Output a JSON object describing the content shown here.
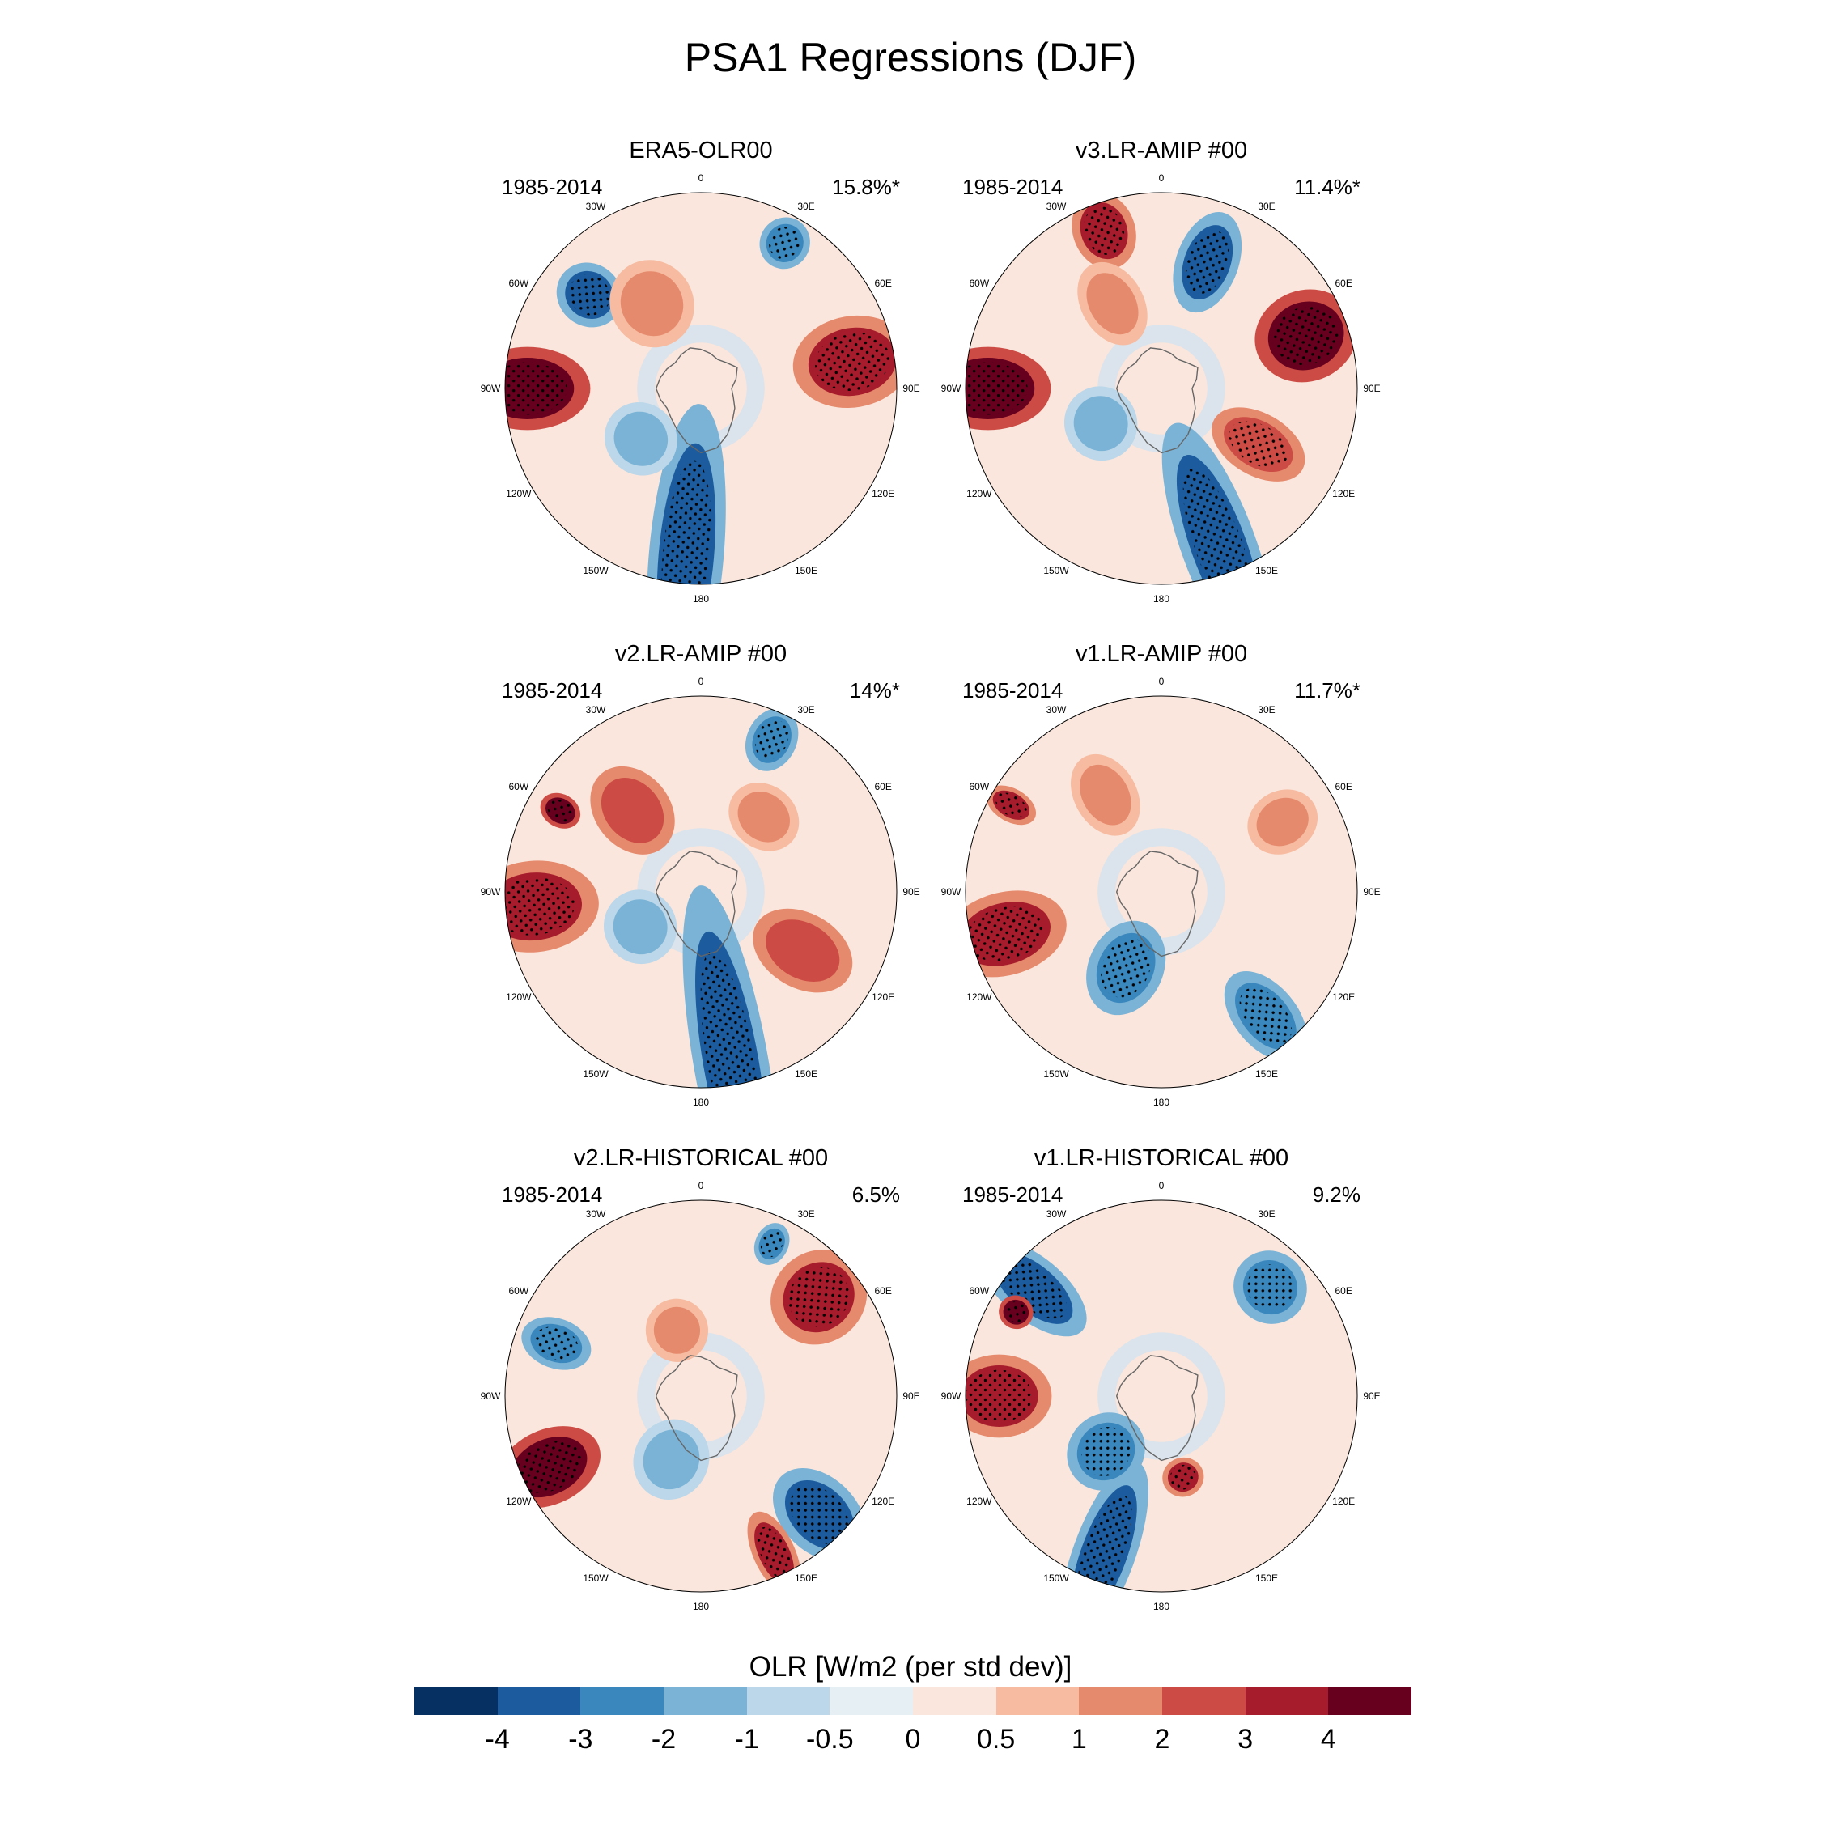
{
  "figure": {
    "title": "PSA1 Regressions (DJF)",
    "panels": [
      {
        "title": "ERA5-OLR00",
        "period": "1985-2014",
        "variance": "15.8%*",
        "anomalies": [
          {
            "lon": 270,
            "colat": 62,
            "lon_width": 28,
            "colat_width": 20,
            "value": 4.2
          },
          {
            "lon": 80,
            "colat": 55,
            "lon_width": 30,
            "colat_width": 22,
            "value": 3.6
          },
          {
            "lon": 185,
            "colat": 60,
            "lon_width": 70,
            "colat_width": 18,
            "value": -4.0
          },
          {
            "lon": 310,
            "colat": 52,
            "lon_width": 18,
            "colat_width": 15,
            "value": -3.3
          },
          {
            "lon": 230,
            "colat": 28,
            "lon_width": 35,
            "colat_width": 18,
            "value": -1.6
          },
          {
            "lon": 330,
            "colat": 35,
            "lon_width": 35,
            "colat_width": 20,
            "value": 1.5
          },
          {
            "lon": 30,
            "colat": 60,
            "lon_width": 12,
            "colat_width": 12,
            "value": -2.5
          }
        ]
      },
      {
        "title": "v3.LR-AMIP  #00",
        "period": "1985-2014",
        "variance": "11.4%*",
        "anomalies": [
          {
            "lon": 270,
            "colat": 62,
            "lon_width": 28,
            "colat_width": 20,
            "value": 4.3
          },
          {
            "lon": 70,
            "colat": 55,
            "lon_width": 26,
            "colat_width": 22,
            "value": 4.0
          },
          {
            "lon": 160,
            "colat": 60,
            "lon_width": 60,
            "colat_width": 18,
            "value": -3.8
          },
          {
            "lon": 120,
            "colat": 40,
            "lon_width": 35,
            "colat_width": 15,
            "value": 2.5
          },
          {
            "lon": 240,
            "colat": 25,
            "lon_width": 40,
            "colat_width": 18,
            "value": -1.6
          },
          {
            "lon": 20,
            "colat": 48,
            "lon_width": 30,
            "colat_width": 15,
            "value": -3.2
          },
          {
            "lon": 340,
            "colat": 60,
            "lon_width": 18,
            "colat_width": 15,
            "value": 3.5
          },
          {
            "lon": 330,
            "colat": 35,
            "lon_width": 35,
            "colat_width": 15,
            "value": 1.5
          }
        ]
      },
      {
        "title": "v2.LR-AMIP  #00",
        "period": "1985-2014",
        "variance": "14%*",
        "anomalies": [
          {
            "lon": 265,
            "colat": 60,
            "lon_width": 30,
            "colat_width": 22,
            "value": 3.6
          },
          {
            "lon": 170,
            "colat": 62,
            "lon_width": 80,
            "colat_width": 18,
            "value": -4.0
          },
          {
            "lon": 120,
            "colat": 42,
            "lon_width": 35,
            "colat_width": 18,
            "value": 2.0
          },
          {
            "lon": 240,
            "colat": 25,
            "lon_width": 40,
            "colat_width": 18,
            "value": -1.8
          },
          {
            "lon": 320,
            "colat": 38,
            "lon_width": 35,
            "colat_width": 18,
            "value": 2.0
          },
          {
            "lon": 40,
            "colat": 35,
            "lon_width": 25,
            "colat_width": 18,
            "value": 1.6
          },
          {
            "lon": 25,
            "colat": 60,
            "lon_width": 15,
            "colat_width": 12,
            "value": -3.0
          },
          {
            "lon": 300,
            "colat": 58,
            "lon_width": 10,
            "colat_width": 8,
            "value": 4.3
          }
        ]
      },
      {
        "title": "v1.LR-AMIP  #00",
        "period": "1985-2014",
        "variance": "11.7%*",
        "anomalies": [
          {
            "lon": 255,
            "colat": 58,
            "lon_width": 30,
            "colat_width": 20,
            "value": 3.5
          },
          {
            "lon": 205,
            "colat": 30,
            "lon_width": 45,
            "colat_width": 18,
            "value": -2.5
          },
          {
            "lon": 140,
            "colat": 58,
            "lon_width": 25,
            "colat_width": 15,
            "value": -3.0
          },
          {
            "lon": 300,
            "colat": 62,
            "lon_width": 12,
            "colat_width": 8,
            "value": 3.0
          },
          {
            "lon": 60,
            "colat": 50,
            "lon_width": 20,
            "colat_width": 15,
            "value": 1.2
          },
          {
            "lon": 330,
            "colat": 40,
            "lon_width": 30,
            "colat_width": 15,
            "value": 1.2
          }
        ]
      },
      {
        "title": "v2.LR-HISTORICAL  #00",
        "period": "1985-2014",
        "variance": "6.5%",
        "anomalies": [
          {
            "lon": 245,
            "colat": 60,
            "lon_width": 25,
            "colat_width": 18,
            "value": 4.2
          },
          {
            "lon": 135,
            "colat": 60,
            "lon_width": 25,
            "colat_width": 18,
            "value": -4.0
          },
          {
            "lon": 155,
            "colat": 62,
            "lon_width": 20,
            "colat_width": 10,
            "value": 3.2
          },
          {
            "lon": 50,
            "colat": 55,
            "lon_width": 25,
            "colat_width": 22,
            "value": 3.0
          },
          {
            "lon": 205,
            "colat": 25,
            "lon_width": 45,
            "colat_width": 18,
            "value": -1.8
          },
          {
            "lon": 340,
            "colat": 25,
            "lon_width": 35,
            "colat_width": 15,
            "value": 1.8
          },
          {
            "lon": 290,
            "colat": 55,
            "lon_width": 18,
            "colat_width": 12,
            "value": -2.5
          },
          {
            "lon": 25,
            "colat": 60,
            "lon_width": 10,
            "colat_width": 8,
            "value": -3.0
          }
        ]
      },
      {
        "title": "v1.LR-HISTORICAL  #00",
        "period": "1985-2014",
        "variance": "9.2%",
        "anomalies": [
          {
            "lon": 270,
            "colat": 58,
            "lon_width": 25,
            "colat_width": 20,
            "value": 3.5
          },
          {
            "lon": 200,
            "colat": 60,
            "lon_width": 45,
            "colat_width": 15,
            "value": -3.6
          },
          {
            "lon": 225,
            "colat": 28,
            "lon_width": 40,
            "colat_width": 18,
            "value": -2.8
          },
          {
            "lon": 165,
            "colat": 30,
            "lon_width": 18,
            "colat_width": 10,
            "value": 3.2
          },
          {
            "lon": 310,
            "colat": 60,
            "lon_width": 30,
            "colat_width": 15,
            "value": -3.5
          },
          {
            "lon": 45,
            "colat": 55,
            "lon_width": 18,
            "colat_width": 18,
            "value": -3.0
          },
          {
            "lon": 300,
            "colat": 60,
            "lon_width": 8,
            "colat_width": 8,
            "value": 4.0
          }
        ]
      }
    ],
    "lon_labels": [
      "0",
      "30E",
      "60E",
      "90E",
      "120E",
      "150E",
      "180",
      "150W",
      "120W",
      "90W",
      "60W",
      "30W"
    ],
    "colorbar": {
      "title": "OLR [W/m2 (per std dev)]",
      "tick_labels": [
        "-4",
        "-3",
        "-2",
        "-1",
        "-0.5",
        "0",
        "0.5",
        "1",
        "2",
        "3",
        "4"
      ],
      "levels": [
        -4,
        -3,
        -2,
        -1,
        -0.5,
        0,
        0.5,
        1,
        2,
        3,
        4
      ],
      "colors": [
        "#053061",
        "#1c5c9e",
        "#3a87bd",
        "#7ab3d6",
        "#bbd7e9",
        "#e6eff4",
        "#fae6dc",
        "#f6bba0",
        "#e68a6d",
        "#cc4c45",
        "#a71c2c",
        "#67001f"
      ]
    }
  }
}
